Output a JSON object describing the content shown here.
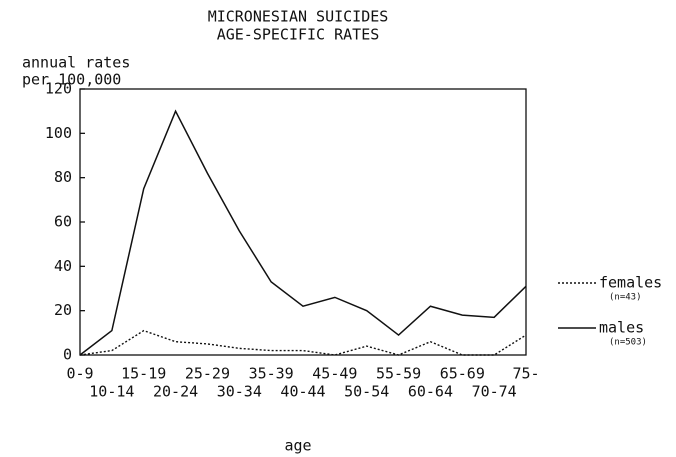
{
  "chart_data": {
    "type": "line",
    "title": [
      "MICRONESIAN SUICIDES",
      "AGE-SPECIFIC RATES"
    ],
    "y_label": [
      "annual rates",
      "per 100,000"
    ],
    "x_label": "age",
    "categories": [
      "0-9",
      "10-14",
      "15-19",
      "20-24",
      "25-29",
      "30-34",
      "35-39",
      "40-44",
      "45-49",
      "50-54",
      "55-59",
      "60-64",
      "65-69",
      "70-74",
      "75-"
    ],
    "series": [
      {
        "name": "females",
        "note": "(n=43)",
        "color": "#111",
        "dash": "dotted",
        "values": [
          0,
          2,
          11,
          6,
          5,
          3,
          2,
          2,
          0,
          4,
          0,
          6,
          0,
          0,
          9
        ]
      },
      {
        "name": "males",
        "note": "(n=503)",
        "color": "#111",
        "dash": "solid",
        "values": [
          0,
          11,
          75,
          110,
          82,
          56,
          33,
          22,
          26,
          20,
          9,
          22,
          18,
          17,
          31
        ]
      }
    ],
    "ylim": [
      0,
      120
    ],
    "yticks": [
      0,
      20,
      40,
      60,
      80,
      100,
      120
    ]
  }
}
